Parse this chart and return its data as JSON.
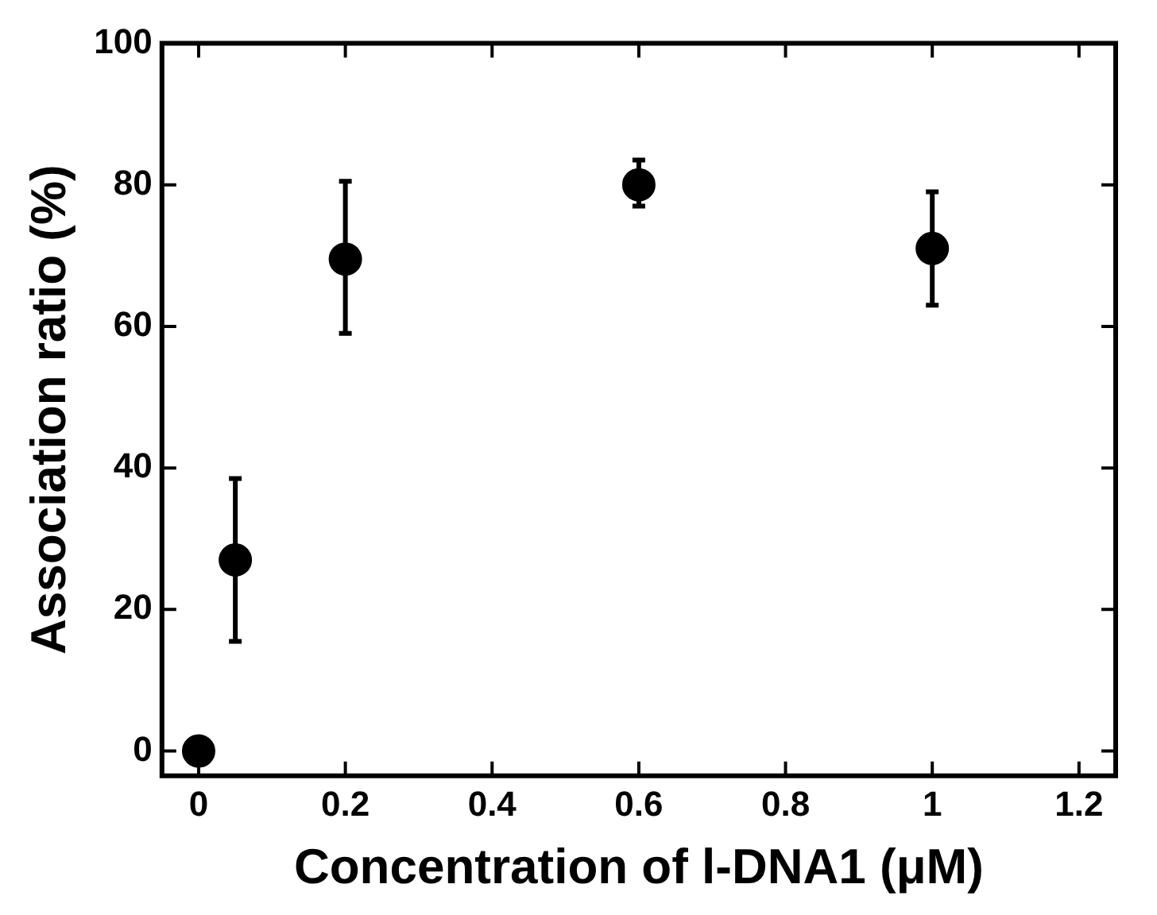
{
  "chart_data": {
    "type": "scatter",
    "xlabel": "Concentration of l-DNA1 (μM)",
    "ylabel": "Association ratio (%)",
    "x": [
      0,
      0.05,
      0.2,
      0.6,
      1
    ],
    "series": [
      {
        "color": "#000000",
        "values": [
          0,
          27,
          69.5,
          80,
          71
        ],
        "errors": [
          null,
          [
            15.5,
            38.5
          ],
          [
            59,
            80.5
          ],
          [
            77,
            83.5
          ],
          [
            63,
            79
          ]
        ]
      }
    ],
    "xlim": [
      -0.05,
      1.25
    ],
    "xticks": [
      0,
      0.2,
      0.4,
      0.6,
      0.8,
      1,
      1.2
    ],
    "ylim": [
      -3.5,
      100
    ],
    "yticks": [
      0,
      20,
      40,
      60,
      80,
      100
    ],
    "marker": "circle",
    "grid": false,
    "legend": false
  }
}
